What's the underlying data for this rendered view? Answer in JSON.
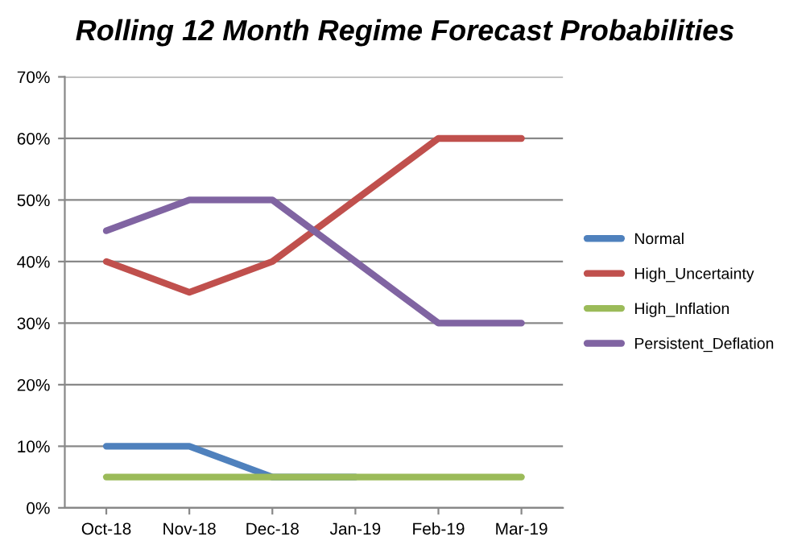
{
  "chart_data": {
    "type": "line",
    "title": "Rolling 12 Month Regime Forecast Probabilities",
    "categories": [
      "Oct-18",
      "Nov-18",
      "Dec-18",
      "Jan-19",
      "Feb-19",
      "Mar-19"
    ],
    "series": [
      {
        "name": "Normal",
        "color": "#4f81bd",
        "values": [
          10,
          10,
          5,
          5,
          null,
          null
        ]
      },
      {
        "name": "High_Uncertainty",
        "color": "#c0504d",
        "values": [
          40,
          35,
          40,
          50,
          60,
          60
        ]
      },
      {
        "name": "High_Inflation",
        "color": "#9bbb59",
        "values": [
          5,
          5,
          5,
          5,
          5,
          5
        ]
      },
      {
        "name": "Persistent_Deflation",
        "color": "#8064a2",
        "values": [
          45,
          50,
          50,
          40,
          30,
          30
        ]
      }
    ],
    "ylim": [
      0,
      70
    ],
    "yticks": [
      {
        "value": 0,
        "label": "0%"
      },
      {
        "value": 10,
        "label": "10%"
      },
      {
        "value": 20,
        "label": "20%"
      },
      {
        "value": 30,
        "label": "30%"
      },
      {
        "value": 40,
        "label": "40%"
      },
      {
        "value": 50,
        "label": "50%"
      },
      {
        "value": 60,
        "label": "60%"
      },
      {
        "value": 70,
        "label": "70%"
      }
    ],
    "grid": "y",
    "legend": "right",
    "marker": "none",
    "line_style": "solid"
  }
}
